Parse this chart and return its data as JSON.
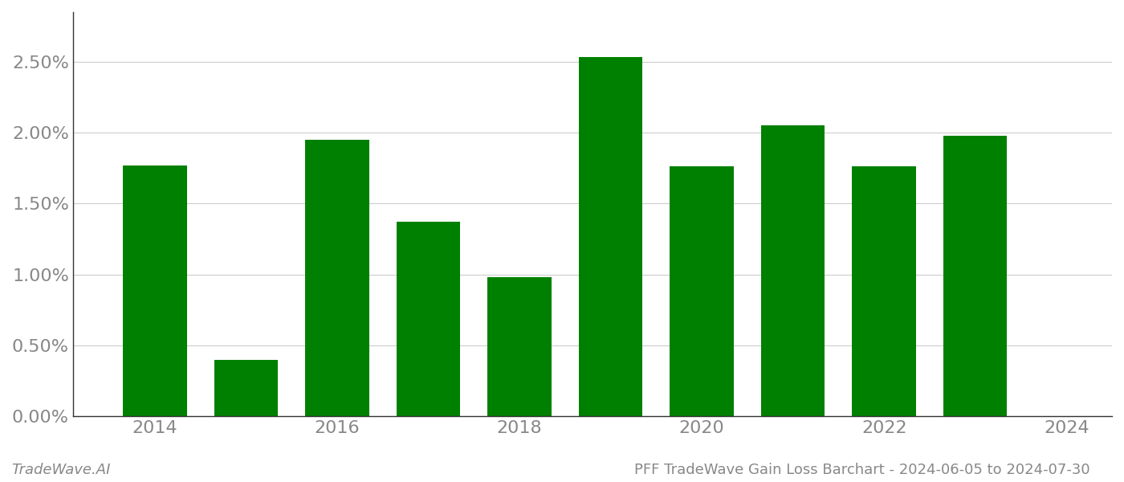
{
  "years": [
    2014,
    2015,
    2016,
    2017,
    2018,
    2019,
    2020,
    2021,
    2022,
    2023
  ],
  "values": [
    0.0177,
    0.004,
    0.0195,
    0.0137,
    0.0098,
    0.0253,
    0.0176,
    0.0205,
    0.0176,
    0.0198
  ],
  "bar_color": "#008000",
  "title": "PFF TradeWave Gain Loss Barchart - 2024-06-05 to 2024-07-30",
  "watermark": "TradeWave.AI",
  "ylim": [
    0,
    0.0285
  ],
  "yticks": [
    0.0,
    0.005,
    0.01,
    0.015,
    0.02,
    0.025
  ],
  "ytick_labels": [
    "0.00%",
    "0.50%",
    "1.00%",
    "1.50%",
    "2.00%",
    "2.50%"
  ],
  "xticks": [
    2014,
    2016,
    2018,
    2020,
    2022,
    2024
  ],
  "xlim": [
    2013.1,
    2024.5
  ],
  "background_color": "#ffffff",
  "grid_color": "#cccccc",
  "bar_width": 0.7,
  "title_fontsize": 13,
  "watermark_fontsize": 13,
  "tick_fontsize": 16,
  "tick_color": "#888888",
  "spine_color": "#333333"
}
